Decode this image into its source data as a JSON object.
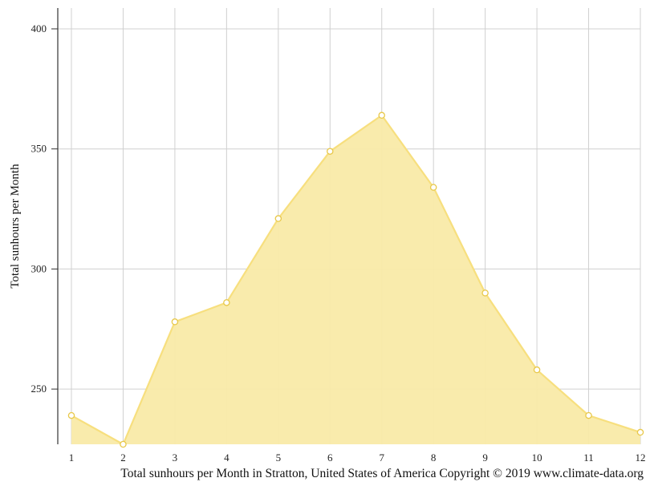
{
  "chart_data": {
    "type": "area",
    "x": [
      1,
      2,
      3,
      4,
      5,
      6,
      7,
      8,
      9,
      10,
      11,
      12
    ],
    "x_tick_labels": [
      "1",
      "2",
      "3",
      "4",
      "5",
      "6",
      "7",
      "8",
      "9",
      "10",
      "11",
      "12"
    ],
    "series": [
      {
        "values": [
          239,
          227,
          278,
          286,
          321,
          349,
          364,
          334,
          290,
          258,
          239,
          232
        ]
      }
    ],
    "ylabel": "Total sunhours per Month",
    "ylim": [
      227,
      404
    ],
    "y_ticks": [
      250,
      300,
      350,
      400
    ],
    "grid": true,
    "colors": {
      "fill": "#f9eaa8",
      "line": "#f7df7e",
      "marker_stroke": "#e8c84a",
      "grid": "#d0d0d0",
      "axis": "#333333"
    }
  },
  "caption": "Total sunhours per Month in Stratton, United States of America Copyright © 2019 www.climate-data.org"
}
